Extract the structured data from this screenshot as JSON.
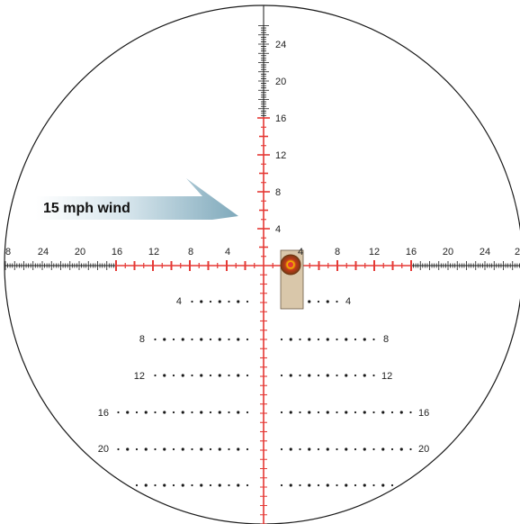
{
  "wind": {
    "label": "15 mph wind"
  },
  "horizontal_labels": {
    "left": [
      "8",
      "24",
      "20",
      "16",
      "12",
      "8",
      "4"
    ],
    "right": [
      "4",
      "8",
      "12",
      "16",
      "20",
      "24",
      "2"
    ]
  },
  "vertical_labels": [
    "24",
    "20",
    "16",
    "12",
    "8",
    "4"
  ],
  "holdover_rows": [
    {
      "left": "4",
      "right": "4"
    },
    {
      "left": "8",
      "right": "8"
    },
    {
      "left": "12",
      "right": "12"
    },
    {
      "left": "16",
      "right": "16"
    },
    {
      "left": "20",
      "right": "20"
    },
    {
      "left": "",
      "right": ""
    }
  ],
  "colors": {
    "reticle_red": "#e53935",
    "reticle_black": "#1a1a1a",
    "target_board": "#d9c7aa",
    "wind_arrow": "#8fb4c4",
    "impact_outer": "#b5651d",
    "impact_inner": "#c62828"
  }
}
